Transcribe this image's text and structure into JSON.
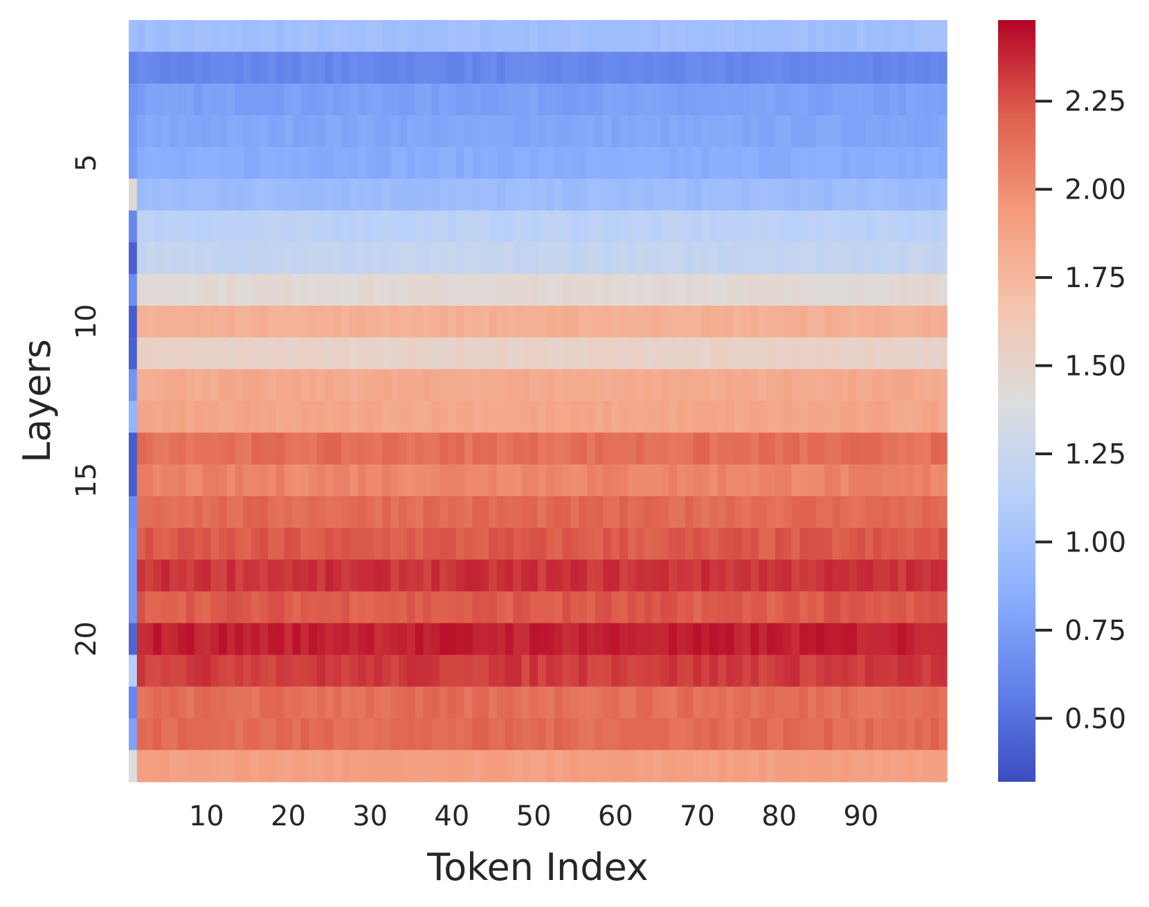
{
  "chart_data": {
    "type": "heatmap",
    "title": "",
    "xlabel": "Token Index",
    "ylabel": "Layers",
    "colormap": "coolwarm",
    "x_ticks": [
      10,
      20,
      30,
      40,
      50,
      60,
      70,
      80,
      90
    ],
    "y_ticks": [
      5,
      10,
      15,
      20
    ],
    "x_range": [
      1,
      100
    ],
    "y_range": [
      1,
      24
    ],
    "colorbar": {
      "vmin": 0.32,
      "vmax": 2.48,
      "ticks": [
        0.5,
        0.75,
        1.0,
        1.25,
        1.5,
        1.75,
        2.0,
        2.25
      ],
      "tick_labels": [
        "0.50",
        "0.75",
        "1.00",
        "1.25",
        "1.50",
        "1.75",
        "2.00",
        "2.25"
      ]
    },
    "first_token_values": [
      0.98,
      0.6,
      0.7,
      0.72,
      0.74,
      1.45,
      0.62,
      0.42,
      0.66,
      0.4,
      0.42,
      0.7,
      0.9,
      0.4,
      0.4,
      0.66,
      0.7,
      0.7,
      0.7,
      0.45,
      1.12,
      0.62,
      0.78,
      1.4
    ],
    "layer_values": [
      0.98,
      0.62,
      0.76,
      0.8,
      0.84,
      0.96,
      1.16,
      1.22,
      1.45,
      1.8,
      1.52,
      1.84,
      1.86,
      2.14,
      2.04,
      2.16,
      2.22,
      2.34,
      2.22,
      2.4,
      2.32,
      2.14,
      2.16,
      1.9
    ],
    "grid": false,
    "legend": "colorbar-right"
  }
}
